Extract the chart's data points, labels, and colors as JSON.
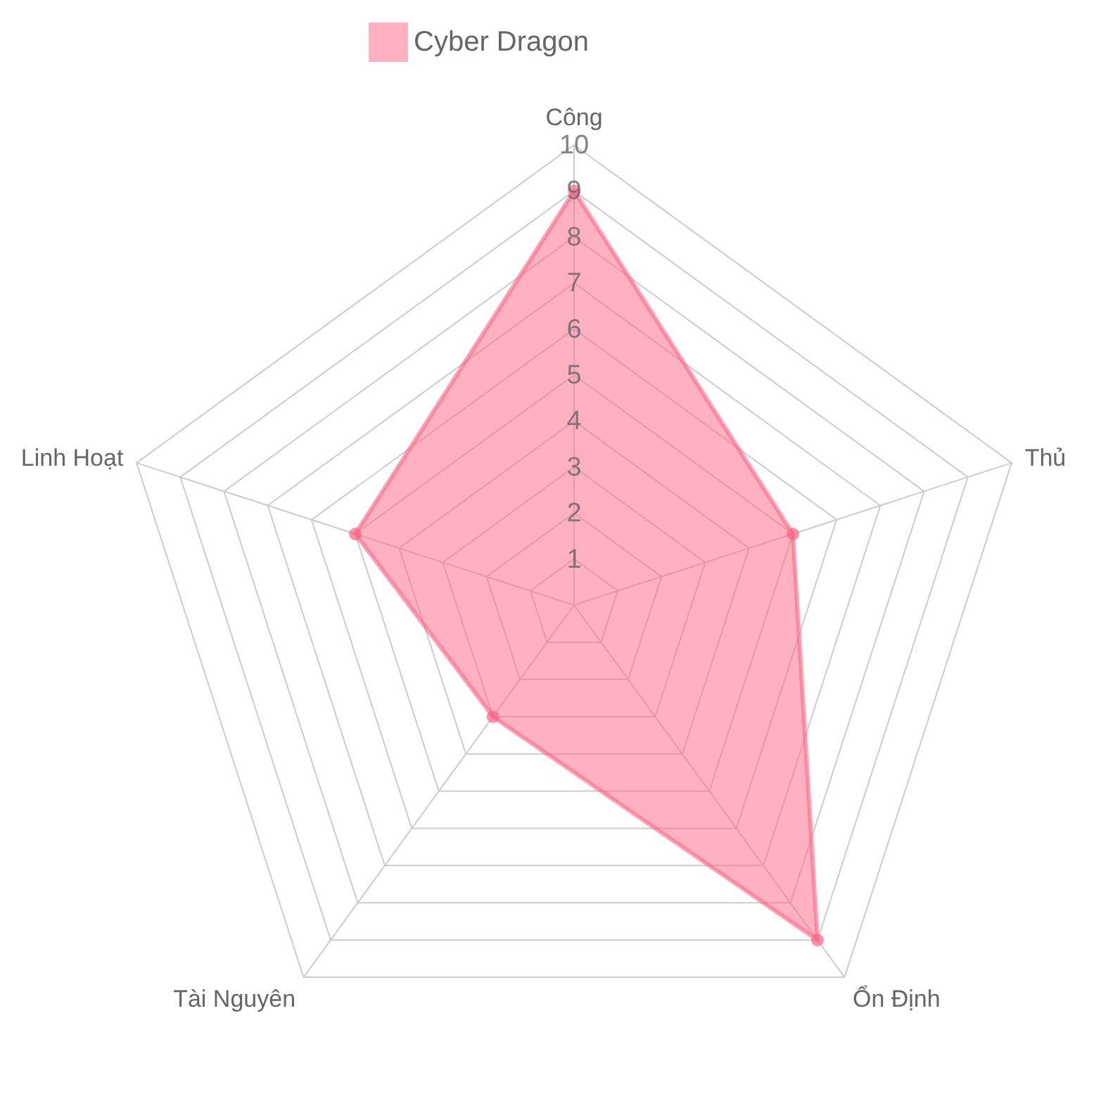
{
  "chart_data": {
    "type": "radar",
    "categories": [
      "Công",
      "Thủ",
      "Ổn Định",
      "Tài Nguyên",
      "Linh Hoạt"
    ],
    "series": [
      {
        "name": "Cyber Dragon",
        "color": "#ff6384",
        "values": [
          9,
          5,
          9,
          3,
          5
        ]
      }
    ],
    "ylim": [
      0,
      10
    ],
    "yticks": [
      1,
      2,
      3,
      4,
      5,
      6,
      7,
      8,
      9,
      10
    ],
    "grid": true,
    "legend": "top",
    "marker": "circle",
    "line_style": "solid"
  }
}
